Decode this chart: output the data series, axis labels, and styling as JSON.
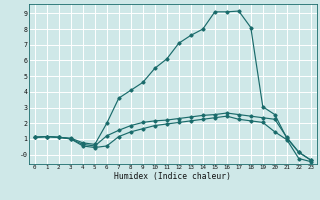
{
  "xlabel": "Humidex (Indice chaleur)",
  "background_color": "#cfe8e8",
  "line_color": "#1a6b6b",
  "grid_color": "#ffffff",
  "xlim": [
    -0.5,
    23.5
  ],
  "ylim": [
    -0.6,
    9.6
  ],
  "xticks": [
    0,
    1,
    2,
    3,
    4,
    5,
    6,
    7,
    8,
    9,
    10,
    11,
    12,
    13,
    14,
    15,
    16,
    17,
    18,
    19,
    20,
    21,
    22,
    23
  ],
  "yticks": [
    0,
    1,
    2,
    3,
    4,
    5,
    6,
    7,
    8,
    9
  ],
  "ytick_labels": [
    "-0",
    "1",
    "2",
    "3",
    "4",
    "5",
    "6",
    "7",
    "8",
    "9"
  ],
  "line1_x": [
    0,
    1,
    2,
    3,
    4,
    5,
    6,
    7,
    8,
    9,
    10,
    11,
    12,
    13,
    14,
    15,
    16,
    17,
    18,
    19,
    20,
    21,
    22,
    23
  ],
  "line1_y": [
    1.1,
    1.15,
    1.1,
    1.0,
    0.65,
    0.55,
    1.2,
    1.55,
    1.85,
    2.05,
    2.15,
    2.2,
    2.3,
    2.4,
    2.5,
    2.55,
    2.65,
    2.55,
    2.45,
    2.35,
    2.25,
    1.1,
    0.15,
    -0.35
  ],
  "line2_x": [
    0,
    1,
    2,
    3,
    4,
    5,
    6,
    7,
    8,
    9,
    10,
    11,
    12,
    13,
    14,
    15,
    16,
    17,
    18,
    19,
    20,
    21,
    22,
    23
  ],
  "line2_y": [
    1.1,
    1.15,
    1.1,
    1.05,
    0.75,
    0.65,
    2.0,
    3.6,
    4.1,
    4.6,
    5.5,
    6.1,
    7.1,
    7.6,
    8.0,
    9.1,
    9.1,
    9.15,
    8.1,
    3.05,
    2.55,
    1.05,
    0.15,
    -0.35
  ],
  "line3_x": [
    0,
    1,
    2,
    3,
    4,
    5,
    6,
    7,
    8,
    9,
    10,
    11,
    12,
    13,
    14,
    15,
    16,
    17,
    18,
    19,
    20,
    21,
    22,
    23
  ],
  "line3_y": [
    1.1,
    1.15,
    1.1,
    1.0,
    0.55,
    0.45,
    0.55,
    1.15,
    1.45,
    1.65,
    1.85,
    1.95,
    2.05,
    2.15,
    2.25,
    2.35,
    2.45,
    2.25,
    2.15,
    2.05,
    1.45,
    0.95,
    -0.25,
    -0.45
  ]
}
